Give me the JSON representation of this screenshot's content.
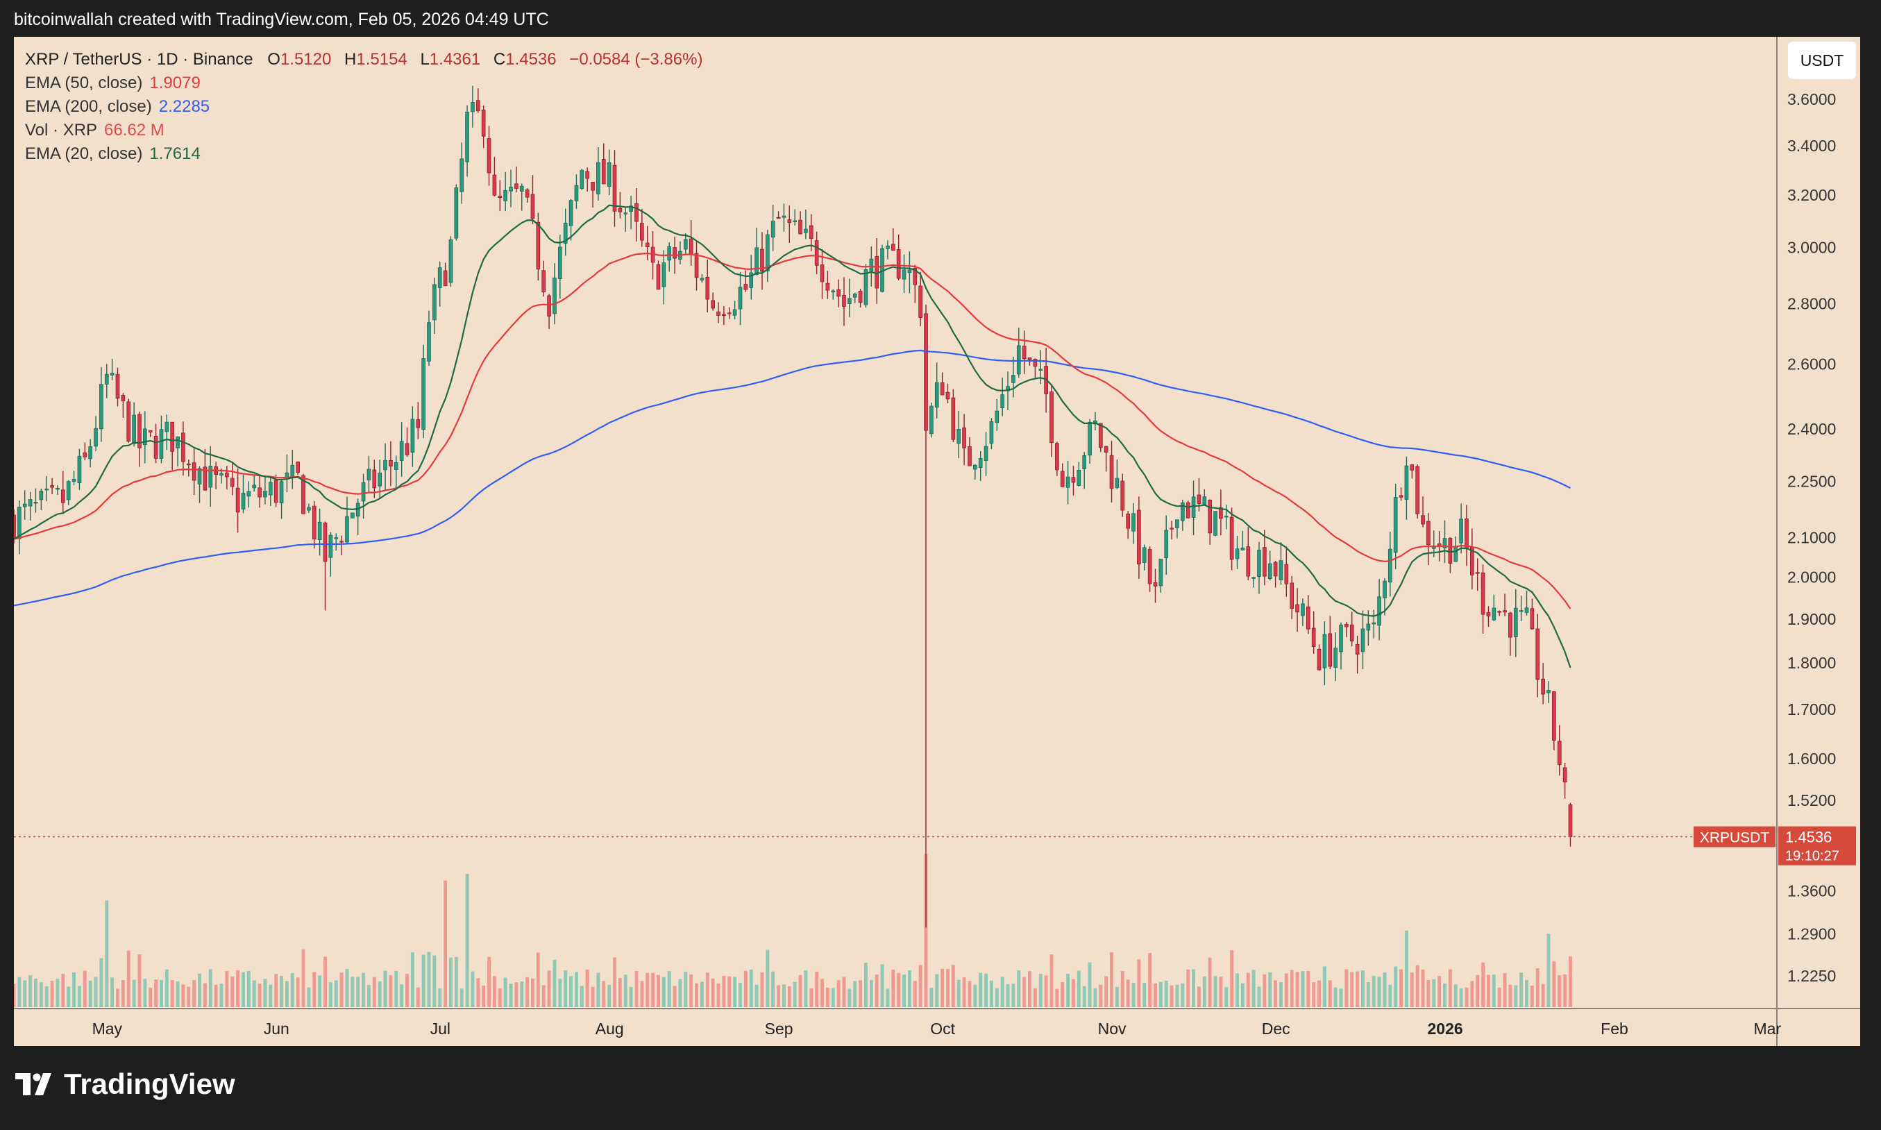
{
  "header": {
    "caption": "bitcoinwallah created with TradingView.com, Feb 05, 2026 04:49 UTC"
  },
  "legend": {
    "symbol": "XRP / TetherUS · 1D · Binance",
    "ohlc": {
      "open_label": "O",
      "open": "1.5120",
      "high_label": "H",
      "high": "1.5154",
      "low_label": "L",
      "low": "1.4361",
      "close_label": "C",
      "close": "1.4536",
      "change": "−0.0584 (−3.86%)"
    },
    "indicators": [
      {
        "label": "EMA (50, close)",
        "value": "1.9079",
        "color": "#e23b3b"
      },
      {
        "label": "EMA (200, close)",
        "value": "2.2285",
        "color": "#2f5ff0"
      },
      {
        "label": "Vol · XRP",
        "value": "66.62 M",
        "color": "#e04b4b"
      },
      {
        "label": "EMA (20, close)",
        "value": "1.7614",
        "color": "#1c6b45"
      }
    ]
  },
  "price_axis": {
    "unit": "USDT",
    "ticks": [
      "3.6000",
      "3.4000",
      "3.2000",
      "3.0000",
      "2.8000",
      "2.6000",
      "2.4000",
      "2.2500",
      "2.1000",
      "2.0000",
      "1.9000",
      "1.8000",
      "1.7000",
      "1.6000",
      "1.5200",
      "1.3600",
      "1.2900",
      "1.2250"
    ],
    "current_label": "XRPUSDT",
    "current_price": "1.4536",
    "countdown": "19:10:27"
  },
  "time_axis": {
    "labels": [
      "May",
      "Jun",
      "Jul",
      "Aug",
      "Sep",
      "Oct",
      "Nov",
      "Dec",
      "2026",
      "Jan_bold",
      "Feb",
      "Mar"
    ]
  },
  "brand": {
    "name": "TradingView"
  },
  "colors": {
    "up": "#2a9a7e",
    "down": "#d9394a",
    "vol_up": "#8fc8b4",
    "vol_down": "#ee9a92",
    "background": "#f2dfcc"
  },
  "chart_data": {
    "type": "candlestick",
    "symbol": "XRP / TetherUS",
    "interval": "1D",
    "exchange": "Binance",
    "y_scale": "log",
    "ylim": [
      1.17,
      3.78
    ],
    "x_range": [
      "2025-04-26",
      "2026-03-11"
    ],
    "month_ticks": [
      "May",
      "Jun",
      "Jul",
      "Aug",
      "Sep",
      "Oct",
      "Nov",
      "Dec",
      "2026",
      "Feb",
      "Mar"
    ],
    "close_anchors": [
      [
        "2025-04-26",
        2.15
      ],
      [
        "2025-05-05",
        2.2
      ],
      [
        "2025-05-09",
        2.3
      ],
      [
        "2025-05-13",
        2.55
      ],
      [
        "2025-05-19",
        2.35
      ],
      [
        "2025-05-25",
        2.38
      ],
      [
        "2025-06-01",
        2.25
      ],
      [
        "2025-06-06",
        2.2
      ],
      [
        "2025-06-12",
        2.22
      ],
      [
        "2025-06-17",
        2.25
      ],
      [
        "2025-06-22",
        2.05
      ],
      [
        "2025-06-28",
        2.2
      ],
      [
        "2025-07-04",
        2.3
      ],
      [
        "2025-07-09",
        2.4
      ],
      [
        "2025-07-11",
        2.75
      ],
      [
        "2025-07-15",
        3.0
      ],
      [
        "2025-07-18",
        3.5
      ],
      [
        "2025-07-21",
        3.52
      ],
      [
        "2025-07-23",
        3.15
      ],
      [
        "2025-07-28",
        3.2
      ],
      [
        "2025-08-02",
        2.82
      ],
      [
        "2025-08-08",
        3.3
      ],
      [
        "2025-08-13",
        3.25
      ],
      [
        "2025-08-17",
        3.1
      ],
      [
        "2025-08-21",
        2.9
      ],
      [
        "2025-08-27",
        3.0
      ],
      [
        "2025-09-01",
        2.8
      ],
      [
        "2025-09-07",
        2.85
      ],
      [
        "2025-09-13",
        3.1
      ],
      [
        "2025-09-20",
        2.98
      ],
      [
        "2025-09-25",
        2.8
      ],
      [
        "2025-09-30",
        2.92
      ],
      [
        "2025-10-06",
        2.95
      ],
      [
        "2025-10-09",
        2.8
      ],
      [
        "2025-10-10",
        2.4
      ],
      [
        "2025-10-13",
        2.55
      ],
      [
        "2025-10-17",
        2.3
      ],
      [
        "2025-10-22",
        2.4
      ],
      [
        "2025-10-27",
        2.65
      ],
      [
        "2025-11-01",
        2.5
      ],
      [
        "2025-11-04",
        2.25
      ],
      [
        "2025-11-10",
        2.4
      ],
      [
        "2025-11-15",
        2.2
      ],
      [
        "2025-11-21",
        1.95
      ],
      [
        "2025-11-25",
        2.2
      ],
      [
        "2025-12-02",
        2.15
      ],
      [
        "2025-12-07",
        2.05
      ],
      [
        "2025-12-12",
        2.05
      ],
      [
        "2025-12-18",
        1.9
      ],
      [
        "2025-12-21",
        1.82
      ],
      [
        "2025-12-26",
        1.85
      ],
      [
        "2025-12-31",
        1.87
      ],
      [
        "2026-01-03",
        2.1
      ],
      [
        "2026-01-06",
        2.35
      ],
      [
        "2026-01-09",
        2.12
      ],
      [
        "2026-01-13",
        2.08
      ],
      [
        "2026-01-16",
        2.1
      ],
      [
        "2026-01-20",
        1.95
      ],
      [
        "2026-01-25",
        1.9
      ],
      [
        "2026-01-28",
        1.88
      ],
      [
        "2026-02-01",
        1.7
      ],
      [
        "2026-02-03",
        1.6
      ],
      [
        "2026-02-05",
        1.4536
      ]
    ],
    "emas": [
      {
        "name": "EMA (20, close)",
        "period": 20,
        "last": 1.7614,
        "color": "#1c6b45"
      },
      {
        "name": "EMA (50, close)",
        "period": 50,
        "last": 1.9079,
        "color": "#e23b3b"
      },
      {
        "name": "EMA (200, close)",
        "period": 200,
        "last": 2.2285,
        "color": "#2f5ff0"
      }
    ],
    "volume": {
      "name": "Vol · XRP",
      "last": "66.62 M",
      "spikes": [
        [
          "2025-05-13",
          3.2
        ],
        [
          "2025-07-14",
          3.8
        ],
        [
          "2025-07-18",
          4.0
        ],
        [
          "2025-10-10",
          4.6
        ],
        [
          "2026-01-06",
          2.3
        ],
        [
          "2026-02-01",
          2.2
        ]
      ]
    },
    "last": {
      "open": 1.512,
      "high": 1.5154,
      "low": 1.4361,
      "close": 1.4536
    }
  }
}
